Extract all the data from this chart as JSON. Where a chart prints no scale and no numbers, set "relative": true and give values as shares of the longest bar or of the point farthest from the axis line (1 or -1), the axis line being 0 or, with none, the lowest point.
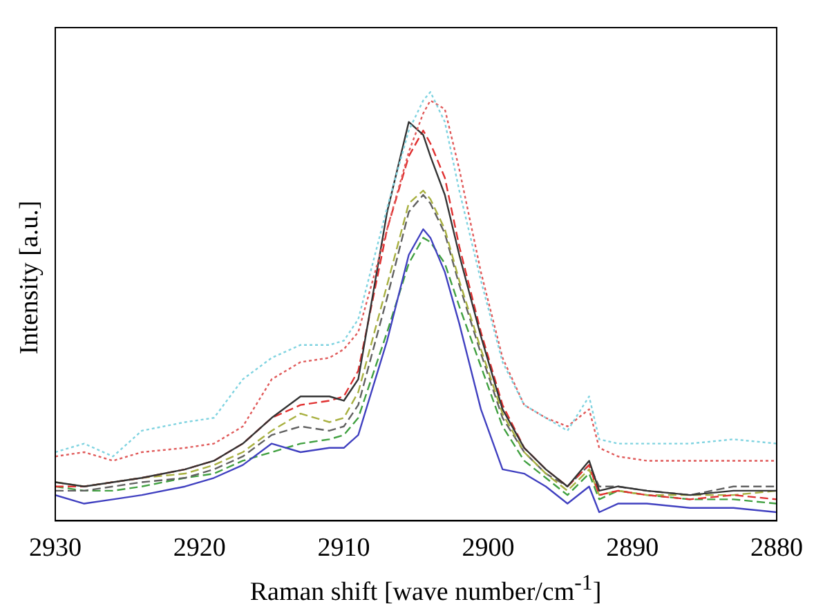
{
  "chart_data": {
    "type": "line",
    "relative": true,
    "xlabel": "Raman shift [wave number/cm$^{-1}$]",
    "ylabel": "Intensity [a.u.]",
    "xlim": [
      2930,
      2880
    ],
    "xticks": [
      2930,
      2920,
      2910,
      2900,
      2890,
      2880
    ],
    "grid": false,
    "legend": false,
    "marker": "none",
    "x": [
      2930,
      2928,
      2926,
      2924,
      2921,
      2919,
      2917,
      2915,
      2913,
      2911,
      2910,
      2909,
      2907,
      2905.5,
      2904.5,
      2904,
      2903,
      2902,
      2900.5,
      2899,
      2897.5,
      2896,
      2894.5,
      2893,
      2892.3,
      2891,
      2889,
      2886,
      2883,
      2880
    ],
    "series": [
      {
        "color": "#7fd3e0",
        "line_style": "dotted",
        "values": [
          0.16,
          0.18,
          0.15,
          0.21,
          0.23,
          0.24,
          0.33,
          0.38,
          0.41,
          0.41,
          0.42,
          0.47,
          0.73,
          0.91,
          0.98,
          1,
          0.93,
          0.77,
          0.56,
          0.37,
          0.27,
          0.24,
          0.21,
          0.29,
          0.19,
          0.18,
          0.18,
          0.18,
          0.19,
          0.18
        ]
      },
      {
        "color": "#e05a5a",
        "line_style": "dotted",
        "values": [
          0.15,
          0.16,
          0.14,
          0.16,
          0.17,
          0.18,
          0.22,
          0.33,
          0.37,
          0.38,
          0.4,
          0.44,
          0.68,
          0.86,
          0.95,
          0.98,
          0.96,
          0.82,
          0.58,
          0.38,
          0.27,
          0.24,
          0.22,
          0.26,
          0.17,
          0.15,
          0.14,
          0.14,
          0.14,
          0.14
        ]
      },
      {
        "color": "#333333",
        "line_style": "solid",
        "values": [
          0.09,
          0.08,
          0.09,
          0.1,
          0.12,
          0.14,
          0.18,
          0.24,
          0.29,
          0.29,
          0.28,
          0.33,
          0.72,
          0.93,
          0.9,
          0.85,
          0.76,
          0.62,
          0.43,
          0.26,
          0.17,
          0.12,
          0.08,
          0.14,
          0.07,
          0.08,
          0.07,
          0.06,
          0.07,
          0.07
        ]
      },
      {
        "color": "#e03030",
        "line_style": "dashed",
        "values": [
          0.08,
          0.08,
          0.09,
          0.1,
          0.12,
          0.14,
          0.18,
          0.24,
          0.27,
          0.28,
          0.29,
          0.35,
          0.68,
          0.85,
          0.91,
          0.88,
          0.8,
          0.64,
          0.44,
          0.27,
          0.17,
          0.12,
          0.08,
          0.13,
          0.06,
          0.07,
          0.06,
          0.05,
          0.06,
          0.05
        ]
      },
      {
        "color": "#a8b040",
        "line_style": "dashed",
        "values": [
          0.09,
          0.08,
          0.09,
          0.1,
          0.11,
          0.13,
          0.16,
          0.21,
          0.25,
          0.23,
          0.24,
          0.3,
          0.55,
          0.74,
          0.77,
          0.75,
          0.68,
          0.56,
          0.4,
          0.25,
          0.16,
          0.11,
          0.07,
          0.12,
          0.06,
          0.07,
          0.06,
          0.06,
          0.06,
          0.07
        ]
      },
      {
        "color": "#606060",
        "line_style": "dashed",
        "values": [
          0.07,
          0.07,
          0.08,
          0.09,
          0.1,
          0.12,
          0.15,
          0.2,
          0.22,
          0.21,
          0.22,
          0.27,
          0.52,
          0.72,
          0.76,
          0.74,
          0.67,
          0.55,
          0.39,
          0.24,
          0.16,
          0.11,
          0.08,
          0.13,
          0.08,
          0.08,
          0.07,
          0.06,
          0.08,
          0.08
        ]
      },
      {
        "color": "#4040c0",
        "line_style": "solid",
        "values": [
          0.06,
          0.04,
          0.05,
          0.06,
          0.08,
          0.1,
          0.13,
          0.18,
          0.16,
          0.17,
          0.17,
          0.2,
          0.42,
          0.62,
          0.68,
          0.66,
          0.58,
          0.46,
          0.26,
          0.12,
          0.11,
          0.08,
          0.04,
          0.08,
          0.02,
          0.04,
          0.04,
          0.03,
          0.03,
          0.02
        ]
      },
      {
        "color": "#40a040",
        "line_style": "dashed",
        "values": [
          0.08,
          0.07,
          0.07,
          0.08,
          0.1,
          0.11,
          0.14,
          0.16,
          0.18,
          0.19,
          0.2,
          0.24,
          0.44,
          0.6,
          0.66,
          0.65,
          0.6,
          0.5,
          0.36,
          0.22,
          0.14,
          0.1,
          0.06,
          0.11,
          0.05,
          0.07,
          0.06,
          0.05,
          0.05,
          0.04
        ]
      }
    ]
  }
}
